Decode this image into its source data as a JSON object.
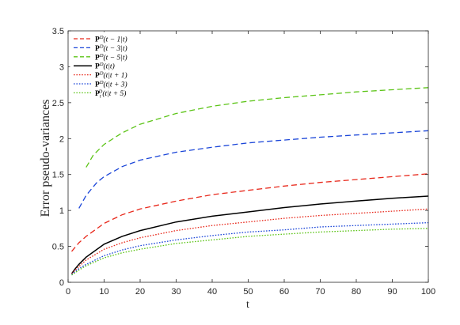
{
  "chart_data": {
    "type": "line",
    "xlabel": "t",
    "ylabel": "Error pseudo-variances",
    "xlim": [
      0,
      100
    ],
    "ylim": [
      0,
      3.5
    ],
    "xticks": [
      0,
      10,
      20,
      30,
      40,
      50,
      60,
      70,
      80,
      90,
      100
    ],
    "yticks": [
      0,
      0.5,
      1,
      1.5,
      2,
      2.5,
      3,
      3.5
    ],
    "ytick_labels": [
      "0",
      "0.5",
      "1",
      "1.5",
      "2",
      "2.5",
      "3",
      "3.5"
    ],
    "grid": false,
    "legend_position": "top-left",
    "series": [
      {
        "name": "P^D(t-1|t)",
        "label_main": "P",
        "label_sup": "D",
        "label_sub": "",
        "label_args": "(t − 1|t)",
        "color": "#e8291c",
        "style": "dashed",
        "points": [
          [
            1,
            0.43
          ],
          [
            3,
            0.55
          ],
          [
            5,
            0.64
          ],
          [
            10,
            0.82
          ],
          [
            15,
            0.94
          ],
          [
            20,
            1.02
          ],
          [
            30,
            1.13
          ],
          [
            40,
            1.22
          ],
          [
            50,
            1.28
          ],
          [
            60,
            1.34
          ],
          [
            70,
            1.39
          ],
          [
            80,
            1.43
          ],
          [
            90,
            1.47
          ],
          [
            100,
            1.51
          ]
        ]
      },
      {
        "name": "P^D(t-3|t)",
        "label_main": "P",
        "label_sup": "D",
        "label_sub": "",
        "label_args": "(t − 3|t)",
        "color": "#1a45d8",
        "style": "dashed",
        "points": [
          [
            3,
            1.03
          ],
          [
            5,
            1.21
          ],
          [
            8,
            1.39
          ],
          [
            10,
            1.47
          ],
          [
            15,
            1.61
          ],
          [
            20,
            1.7
          ],
          [
            30,
            1.81
          ],
          [
            40,
            1.88
          ],
          [
            50,
            1.94
          ],
          [
            60,
            1.98
          ],
          [
            70,
            2.02
          ],
          [
            80,
            2.05
          ],
          [
            90,
            2.08
          ],
          [
            100,
            2.11
          ]
        ]
      },
      {
        "name": "P^D(t-5|t)",
        "label_main": "P",
        "label_sup": "D",
        "label_sub": "",
        "label_args": "(t − 5|t)",
        "color": "#5cc417",
        "style": "dashed",
        "points": [
          [
            5,
            1.6
          ],
          [
            7,
            1.77
          ],
          [
            10,
            1.92
          ],
          [
            15,
            2.08
          ],
          [
            20,
            2.2
          ],
          [
            30,
            2.35
          ],
          [
            40,
            2.45
          ],
          [
            50,
            2.52
          ],
          [
            60,
            2.57
          ],
          [
            70,
            2.61
          ],
          [
            80,
            2.65
          ],
          [
            90,
            2.68
          ],
          [
            100,
            2.71
          ]
        ]
      },
      {
        "name": "P^D(t|t)",
        "label_main": "P",
        "label_sup": "D",
        "label_sub": "",
        "label_args": "(t|t)",
        "color": "#000000",
        "style": "solid",
        "points": [
          [
            1,
            0.12
          ],
          [
            2,
            0.19
          ],
          [
            3,
            0.25
          ],
          [
            5,
            0.35
          ],
          [
            10,
            0.53
          ],
          [
            15,
            0.64
          ],
          [
            20,
            0.72
          ],
          [
            30,
            0.84
          ],
          [
            40,
            0.92
          ],
          [
            50,
            0.98
          ],
          [
            60,
            1.04
          ],
          [
            70,
            1.09
          ],
          [
            80,
            1.13
          ],
          [
            90,
            1.17
          ],
          [
            100,
            1.2
          ]
        ]
      },
      {
        "name": "P^D(t|t+1)",
        "label_main": "P",
        "label_sup": "D",
        "label_sub": "",
        "label_args": "(t|t + 1)",
        "color": "#e8291c",
        "style": "dotted",
        "points": [
          [
            1,
            0.12
          ],
          [
            3,
            0.22
          ],
          [
            5,
            0.31
          ],
          [
            10,
            0.46
          ],
          [
            15,
            0.55
          ],
          [
            20,
            0.62
          ],
          [
            30,
            0.72
          ],
          [
            40,
            0.79
          ],
          [
            50,
            0.84
          ],
          [
            60,
            0.89
          ],
          [
            70,
            0.93
          ],
          [
            80,
            0.96
          ],
          [
            90,
            0.99
          ],
          [
            100,
            1.02
          ]
        ]
      },
      {
        "name": "P^D(t|t+3)",
        "label_main": "P",
        "label_sup": "D",
        "label_sub": "",
        "label_args": "(t|t + 3)",
        "color": "#1a45d8",
        "style": "dotted",
        "points": [
          [
            1,
            0.11
          ],
          [
            3,
            0.19
          ],
          [
            5,
            0.25
          ],
          [
            10,
            0.37
          ],
          [
            15,
            0.45
          ],
          [
            20,
            0.51
          ],
          [
            30,
            0.59
          ],
          [
            40,
            0.65
          ],
          [
            50,
            0.7
          ],
          [
            60,
            0.73
          ],
          [
            70,
            0.77
          ],
          [
            80,
            0.79
          ],
          [
            90,
            0.81
          ],
          [
            100,
            0.83
          ]
        ]
      },
      {
        "name": "P_t^D(t|t+5)",
        "label_main": "P",
        "label_sup": "D",
        "label_sub": "t",
        "label_args": "(t|t + 5)",
        "color": "#5cc417",
        "style": "dotted",
        "points": [
          [
            1,
            0.1
          ],
          [
            3,
            0.17
          ],
          [
            5,
            0.23
          ],
          [
            10,
            0.34
          ],
          [
            15,
            0.41
          ],
          [
            20,
            0.46
          ],
          [
            30,
            0.54
          ],
          [
            40,
            0.59
          ],
          [
            50,
            0.64
          ],
          [
            60,
            0.67
          ],
          [
            70,
            0.7
          ],
          [
            80,
            0.72
          ],
          [
            90,
            0.74
          ],
          [
            100,
            0.75
          ]
        ]
      }
    ]
  }
}
